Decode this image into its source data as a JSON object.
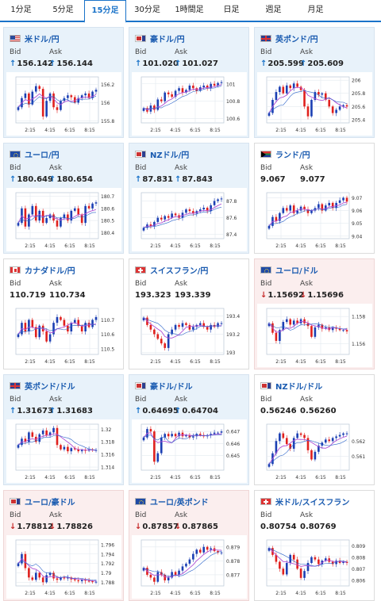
{
  "tabs": [
    "1分足",
    "5分足",
    "15分足",
    "30分足",
    "1時間足",
    "日足",
    "週足",
    "月足"
  ],
  "active_tab": "15分足",
  "labels": {
    "bid": "Bid",
    "ask": "Ask"
  },
  "colors": {
    "up_candle": "#1b3fb3",
    "down_candle": "#e0201d",
    "ma_line": "#b04fd4",
    "accent": "#1a73c9"
  },
  "cards": [
    {
      "pair": "米ドル/円",
      "flag": "us",
      "theme": "blue",
      "bid": "156.142",
      "ask": "156.144",
      "dir": "up",
      "chart_data": {
        "type": "candlestick",
        "y_ticks": [
          "156.2",
          "156",
          "155.8"
        ],
        "x_ticks": [
          "2:15",
          "4:15",
          "6:15",
          "8:15"
        ],
        "closes": [
          155.95,
          156.05,
          156.1,
          155.98,
          156.12,
          156.18,
          156.15,
          155.85,
          156.02,
          156.1,
          155.95,
          155.92,
          156.02,
          156.05,
          156.08,
          156.06,
          156.0,
          156.05,
          156.08,
          156.1,
          156.05,
          156.12,
          156.14
        ],
        "ylim": [
          155.78,
          156.28
        ]
      }
    },
    {
      "pair": "豪ドル/円",
      "flag": "au",
      "theme": "blue",
      "bid": "101.020",
      "ask": "101.027",
      "dir": "up",
      "chart_data": {
        "type": "candlestick",
        "y_ticks": [
          "101",
          "100.8",
          "100.6"
        ],
        "x_ticks": [
          "2:15",
          "4:15",
          "6:15",
          "8:15"
        ],
        "closes": [
          100.72,
          100.68,
          100.75,
          100.7,
          100.82,
          100.8,
          100.9,
          100.88,
          100.85,
          100.92,
          100.95,
          100.9,
          100.93,
          100.98,
          100.95,
          100.92,
          100.96,
          100.98,
          100.95,
          101.0,
          100.98,
          101.01,
          101.02
        ],
        "ylim": [
          100.55,
          101.08
        ]
      }
    },
    {
      "pair": "英ポンド/円",
      "flag": "gb",
      "theme": "blue",
      "bid": "205.599",
      "ask": "205.609",
      "dir": "up",
      "chart_data": {
        "type": "candlestick",
        "y_ticks": [
          "206",
          "205.8",
          "205.6",
          "205.4"
        ],
        "x_ticks": [
          "2:15",
          "4:15",
          "6:15",
          "8:15"
        ],
        "closes": [
          205.5,
          205.7,
          205.82,
          205.9,
          205.8,
          205.92,
          205.88,
          205.95,
          205.9,
          205.85,
          205.6,
          205.45,
          205.7,
          205.82,
          205.78,
          205.8,
          205.7,
          205.6,
          205.5,
          205.55,
          205.6,
          205.62,
          205.6
        ],
        "ylim": [
          205.35,
          206.05
        ]
      }
    },
    {
      "pair": "ユーロ/円",
      "flag": "eu",
      "theme": "blue",
      "bid": "180.649",
      "ask": "180.654",
      "dir": "up",
      "chart_data": {
        "type": "candlestick",
        "y_ticks": [
          "180.7",
          "180.6",
          "180.5",
          "180.4"
        ],
        "x_ticks": [
          "2:15",
          "4:15",
          "6:15",
          "8:15"
        ],
        "closes": [
          180.48,
          180.6,
          180.45,
          180.55,
          180.62,
          180.5,
          180.58,
          180.48,
          180.52,
          180.55,
          180.5,
          180.45,
          180.52,
          180.55,
          180.5,
          180.58,
          180.6,
          180.55,
          180.48,
          180.62,
          180.6,
          180.64,
          180.65
        ],
        "ylim": [
          180.35,
          180.73
        ]
      }
    },
    {
      "pair": "NZドル/円",
      "flag": "nz",
      "theme": "blue",
      "bid": "87.831",
      "ask": "87.843",
      "dir": "up",
      "chart_data": {
        "type": "candlestick",
        "y_ticks": [
          "87.8",
          "87.6",
          "87.4"
        ],
        "x_ticks": [
          "2:15",
          "4:15",
          "6:15",
          "8:15"
        ],
        "closes": [
          87.48,
          87.52,
          87.5,
          87.55,
          87.6,
          87.58,
          87.62,
          87.6,
          87.65,
          87.63,
          87.6,
          87.66,
          87.7,
          87.68,
          87.65,
          87.68,
          87.7,
          87.72,
          87.68,
          87.75,
          87.8,
          87.82,
          87.83
        ],
        "ylim": [
          87.35,
          87.9
        ]
      }
    },
    {
      "pair": "ランド/円",
      "flag": "za",
      "theme": "neutral",
      "bid": "9.067",
      "ask": "9.077",
      "dir": "",
      "chart_data": {
        "type": "candlestick",
        "y_ticks": [
          "9.07",
          "9.06",
          "9.05",
          "9.04"
        ],
        "x_ticks": [
          "2:15",
          "4:15",
          "6:15",
          "8:15"
        ],
        "closes": [
          9.048,
          9.055,
          9.052,
          9.058,
          9.062,
          9.06,
          9.064,
          9.058,
          9.06,
          9.063,
          9.061,
          9.058,
          9.06,
          9.062,
          9.065,
          9.06,
          9.064,
          9.066,
          9.062,
          9.066,
          9.068,
          9.07,
          9.067
        ],
        "ylim": [
          9.038,
          9.074
        ]
      }
    },
    {
      "pair": "カナダドル/円",
      "flag": "ca",
      "theme": "neutral",
      "bid": "110.719",
      "ask": "110.734",
      "dir": "",
      "chart_data": {
        "type": "candlestick",
        "y_ticks": [
          "110.7",
          "110.6",
          "110.5"
        ],
        "x_ticks": [
          "2:15",
          "4:15",
          "6:15",
          "8:15"
        ],
        "closes": [
          110.6,
          110.68,
          110.62,
          110.7,
          110.65,
          110.58,
          110.66,
          110.62,
          110.55,
          110.6,
          110.68,
          110.72,
          110.7,
          110.66,
          110.62,
          110.68,
          110.7,
          110.66,
          110.62,
          110.68,
          110.65,
          110.7,
          110.72
        ],
        "ylim": [
          110.46,
          110.78
        ]
      }
    },
    {
      "pair": "スイスフラン/円",
      "flag": "ch",
      "theme": "neutral",
      "bid": "193.323",
      "ask": "193.339",
      "dir": "",
      "chart_data": {
        "type": "candlestick",
        "y_ticks": [
          "193.4",
          "193.2",
          "193"
        ],
        "x_ticks": [
          "2:15",
          "4:15",
          "6:15",
          "8:15"
        ],
        "closes": [
          193.38,
          193.3,
          193.25,
          193.2,
          193.15,
          193.1,
          193.05,
          193.2,
          193.25,
          193.3,
          193.28,
          193.32,
          193.3,
          193.25,
          193.28,
          193.3,
          193.32,
          193.28,
          193.25,
          193.3,
          193.28,
          193.32,
          193.32
        ],
        "ylim": [
          192.98,
          193.48
        ]
      }
    },
    {
      "pair": "ユーロ/ドル",
      "flag": "eu",
      "theme": "red",
      "bid": "1.15692",
      "ask": "1.15696",
      "dir": "down",
      "chart_data": {
        "type": "candlestick",
        "y_ticks": [
          "1.158",
          "1.156"
        ],
        "x_ticks": [
          "2:15",
          "4:15",
          "6:15",
          "8:15"
        ],
        "closes": [
          1.1575,
          1.1568,
          1.1562,
          1.157,
          1.1576,
          1.1578,
          1.1574,
          1.1577,
          1.1575,
          1.1578,
          1.1575,
          1.1573,
          1.1565,
          1.1572,
          1.1574,
          1.1571,
          1.1572,
          1.157,
          1.1572,
          1.1571,
          1.157,
          1.157,
          1.1569
        ],
        "ylim": [
          1.1552,
          1.1586
        ]
      }
    },
    {
      "pair": "英ポンド/ドル",
      "flag": "gb",
      "theme": "blue",
      "bid": "1.31673",
      "ask": "1.31683",
      "dir": "up",
      "chart_data": {
        "type": "candlestick",
        "y_ticks": [
          "1.32",
          "1.318",
          "1.316",
          "1.314"
        ],
        "x_ticks": [
          "2:15",
          "4:15",
          "6:15",
          "8:15"
        ],
        "closes": [
          1.3175,
          1.3185,
          1.318,
          1.3195,
          1.3188,
          1.318,
          1.3192,
          1.3198,
          1.319,
          1.3195,
          1.3202,
          1.3175,
          1.3168,
          1.3172,
          1.3165,
          1.317,
          1.3168,
          1.3165,
          1.3167,
          1.3166,
          1.3168,
          1.3167,
          1.3167
        ],
        "ylim": [
          1.3135,
          1.3208
        ]
      }
    },
    {
      "pair": "豪ドル/ドル",
      "flag": "au",
      "theme": "blue",
      "bid": "0.64695",
      "ask": "0.64704",
      "dir": "up",
      "chart_data": {
        "type": "candlestick",
        "y_ticks": [
          "0.647",
          "0.646",
          "0.645"
        ],
        "x_ticks": [
          "2:15",
          "4:15",
          "6:15",
          "8:15"
        ],
        "closes": [
          0.6465,
          0.6472,
          0.647,
          0.6445,
          0.6452,
          0.6465,
          0.6468,
          0.6466,
          0.6468,
          0.6466,
          0.6469,
          0.6466,
          0.6467,
          0.6465,
          0.6466,
          0.6468,
          0.6467,
          0.6466,
          0.6467,
          0.6468,
          0.6469,
          0.6469,
          0.647
        ],
        "ylim": [
          0.6438,
          0.6476
        ]
      }
    },
    {
      "pair": "NZドル/ドル",
      "flag": "nz",
      "theme": "neutral",
      "bid": "0.56246",
      "ask": "0.56260",
      "dir": "",
      "chart_data": {
        "type": "candlestick",
        "y_ticks": [
          "0.562",
          "0.561"
        ],
        "x_ticks": [
          "2:15",
          "4:15",
          "6:15",
          "8:15"
        ],
        "closes": [
          0.5605,
          0.5612,
          0.562,
          0.5625,
          0.5622,
          0.5618,
          0.5615,
          0.5622,
          0.5625,
          0.5624,
          0.5622,
          0.5614,
          0.5608,
          0.5613,
          0.5617,
          0.5619,
          0.5621,
          0.562,
          0.5622,
          0.5623,
          0.5624,
          0.5625,
          0.5625
        ],
        "ylim": [
          0.5601,
          0.5631
        ]
      }
    },
    {
      "pair": "ユーロ/豪ドル",
      "flag": "au",
      "theme": "red",
      "bid": "1.78812",
      "ask": "1.78826",
      "dir": "down",
      "chart_data": {
        "type": "candlestick",
        "y_ticks": [
          "1.796",
          "1.794",
          "1.792",
          "1.79",
          "1.788"
        ],
        "x_ticks": [
          "2:15",
          "4:15",
          "6:15",
          "8:15"
        ],
        "closes": [
          1.792,
          1.794,
          1.791,
          1.789,
          1.7885,
          1.79,
          1.789,
          1.788,
          1.7895,
          1.79,
          1.7888,
          1.7885,
          1.789,
          1.7888,
          1.789,
          1.7886,
          1.7884,
          1.7882,
          1.7885,
          1.7883,
          1.7882,
          1.7881,
          1.7881
        ],
        "ylim": [
          1.7872,
          1.797
        ]
      }
    },
    {
      "pair": "ユーロ/英ポンド",
      "flag": "eu",
      "theme": "red",
      "bid": "0.87857",
      "ask": "0.87865",
      "dir": "down",
      "chart_data": {
        "type": "candlestick",
        "y_ticks": [
          "0.879",
          "0.878",
          "0.877"
        ],
        "x_ticks": [
          "2:15",
          "4:15",
          "6:15",
          "8:15"
        ],
        "closes": [
          0.8775,
          0.877,
          0.8768,
          0.8765,
          0.8772,
          0.877,
          0.8766,
          0.8768,
          0.8772,
          0.877,
          0.8773,
          0.8776,
          0.8778,
          0.8781,
          0.8785,
          0.8788,
          0.8786,
          0.879,
          0.8788,
          0.8789,
          0.8787,
          0.8786,
          0.8786
        ],
        "ylim": [
          0.8762,
          0.8795
        ]
      }
    },
    {
      "pair": "米ドル/スイスフラン",
      "flag": "ch",
      "theme": "neutral",
      "bid": "0.80754",
      "ask": "0.80769",
      "dir": "",
      "chart_data": {
        "type": "candlestick",
        "y_ticks": [
          "0.809",
          "0.808",
          "0.807",
          "0.806"
        ],
        "x_ticks": [
          "2:15",
          "4:15",
          "6:15",
          "8:15"
        ],
        "closes": [
          0.8088,
          0.8082,
          0.8076,
          0.807,
          0.8065,
          0.8075,
          0.8082,
          0.8078,
          0.807,
          0.8062,
          0.8068,
          0.8075,
          0.808,
          0.8078,
          0.8074,
          0.8077,
          0.8079,
          0.8076,
          0.8074,
          0.8077,
          0.8075,
          0.8076,
          0.8075
        ],
        "ylim": [
          0.8055,
          0.8095
        ]
      }
    }
  ]
}
